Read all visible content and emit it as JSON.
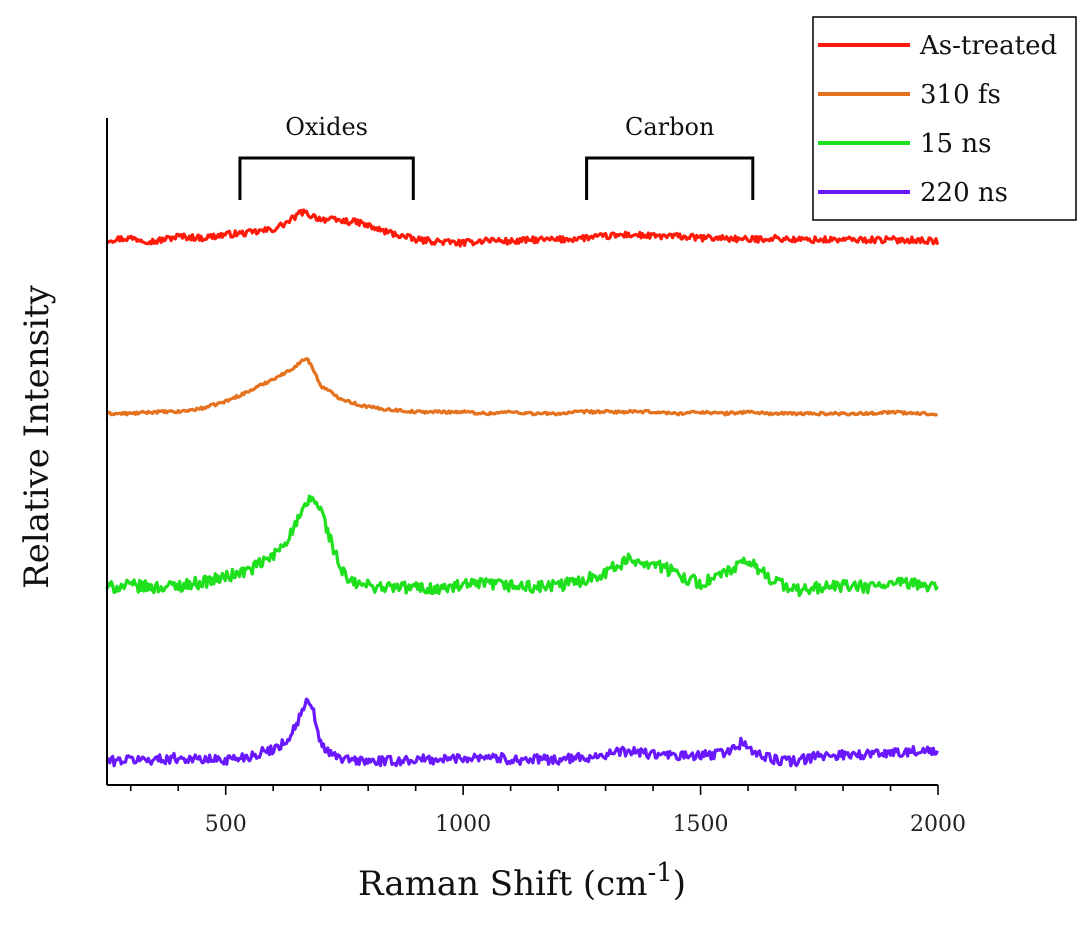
{
  "chart_data": {
    "type": "line",
    "title": "",
    "xlabel": "Raman Shift (cm",
    "xlabel_superscript": "-1",
    "xlabel_suffix": ")",
    "ylabel": "Relative Intensity",
    "xlim": [
      250,
      2000
    ],
    "x_ticks": [
      500,
      1000,
      1500,
      2000
    ],
    "x_tick_labels": [
      "500",
      "1000",
      "1500",
      "2000"
    ],
    "y_ticks_shown": false,
    "grid": false,
    "legend_position": "top-right",
    "annotations": [
      {
        "label": "Oxides",
        "x_start": 530,
        "x_end": 895
      },
      {
        "label": "Carbon",
        "x_start": 1260,
        "x_end": 1610
      }
    ],
    "series": [
      {
        "name": "As-treated",
        "color": "#ff1a0a",
        "x": [
          250,
          300,
          350,
          400,
          450,
          500,
          550,
          600,
          630,
          660,
          680,
          700,
          740,
          780,
          820,
          860,
          900,
          950,
          1000,
          1050,
          1100,
          1150,
          1200,
          1250,
          1300,
          1350,
          1400,
          1450,
          1500,
          1550,
          1600,
          1650,
          1700,
          1750,
          1800,
          1850,
          1900,
          1950,
          2000
        ],
        "y": [
          1.0,
          1.01,
          0.99,
          1.02,
          1.01,
          1.03,
          1.04,
          1.06,
          1.1,
          1.16,
          1.14,
          1.12,
          1.11,
          1.1,
          1.06,
          1.03,
          1.0,
          0.99,
          0.98,
          1.0,
          0.99,
          1.0,
          1.0,
          1.01,
          1.02,
          1.03,
          1.02,
          1.02,
          1.01,
          1.01,
          1.0,
          1.01,
          1.0,
          1.0,
          1.0,
          1.0,
          1.0,
          1.0,
          0.99
        ]
      },
      {
        "name": "310 fs",
        "color": "#e4721e",
        "x": [
          250,
          300,
          350,
          400,
          450,
          500,
          550,
          600,
          630,
          660,
          670,
          680,
          700,
          740,
          780,
          820,
          860,
          900,
          950,
          1000,
          1050,
          1100,
          1150,
          1200,
          1250,
          1300,
          1350,
          1400,
          1450,
          1500,
          1550,
          1600,
          1650,
          1700,
          1750,
          1800,
          1850,
          1900,
          1950,
          2000
        ],
        "y": [
          0.0,
          0.0,
          0.01,
          0.01,
          0.03,
          0.07,
          0.13,
          0.2,
          0.24,
          0.3,
          0.32,
          0.28,
          0.16,
          0.09,
          0.05,
          0.03,
          0.02,
          0.01,
          0.01,
          0.01,
          0.0,
          0.01,
          0.0,
          0.0,
          0.01,
          0.01,
          0.01,
          0.01,
          0.0,
          0.01,
          0.0,
          0.01,
          0.0,
          0.0,
          0.0,
          0.0,
          0.0,
          0.01,
          0.0,
          0.0
        ]
      },
      {
        "name": "15 ns",
        "color": "#1fe01c",
        "x": [
          250,
          300,
          350,
          400,
          450,
          500,
          550,
          600,
          630,
          660,
          680,
          700,
          720,
          740,
          760,
          800,
          850,
          900,
          950,
          1000,
          1050,
          1100,
          1150,
          1200,
          1250,
          1300,
          1350,
          1400,
          1450,
          1500,
          1550,
          1600,
          1650,
          1700,
          1750,
          1800,
          1850,
          1900,
          1950,
          2000
        ],
        "y": [
          -1.0,
          -0.99,
          -1.0,
          -0.99,
          -0.97,
          -0.94,
          -0.9,
          -0.82,
          -0.72,
          -0.58,
          -0.48,
          -0.55,
          -0.72,
          -0.88,
          -0.97,
          -0.99,
          -1.0,
          -1.0,
          -1.01,
          -0.99,
          -0.98,
          -0.99,
          -1.0,
          -0.99,
          -0.96,
          -0.91,
          -0.84,
          -0.86,
          -0.92,
          -0.98,
          -0.92,
          -0.85,
          -0.95,
          -1.02,
          -1.0,
          -0.99,
          -1.0,
          -0.98,
          -0.98,
          -0.99
        ]
      },
      {
        "name": "220 ns",
        "color": "#6a18ff",
        "x": [
          250,
          300,
          350,
          400,
          450,
          500,
          550,
          600,
          630,
          650,
          670,
          685,
          700,
          720,
          750,
          800,
          850,
          900,
          950,
          1000,
          1050,
          1100,
          1150,
          1200,
          1250,
          1300,
          1350,
          1400,
          1450,
          1500,
          1550,
          1580,
          1590,
          1600,
          1650,
          1700,
          1750,
          1800,
          1850,
          1900,
          1950,
          2000
        ],
        "y": [
          -2.0,
          -1.99,
          -1.99,
          -1.98,
          -1.99,
          -1.99,
          -1.97,
          -1.93,
          -1.88,
          -1.78,
          -1.66,
          -1.72,
          -1.9,
          -1.96,
          -1.99,
          -2.0,
          -2.0,
          -1.99,
          -1.99,
          -1.98,
          -1.97,
          -1.99,
          -1.99,
          -1.99,
          -1.98,
          -1.96,
          -1.94,
          -1.96,
          -1.97,
          -1.97,
          -1.95,
          -1.91,
          -1.88,
          -1.93,
          -1.99,
          -2.0,
          -1.97,
          -1.96,
          -1.96,
          -1.95,
          -1.94,
          -1.95
        ]
      }
    ]
  }
}
